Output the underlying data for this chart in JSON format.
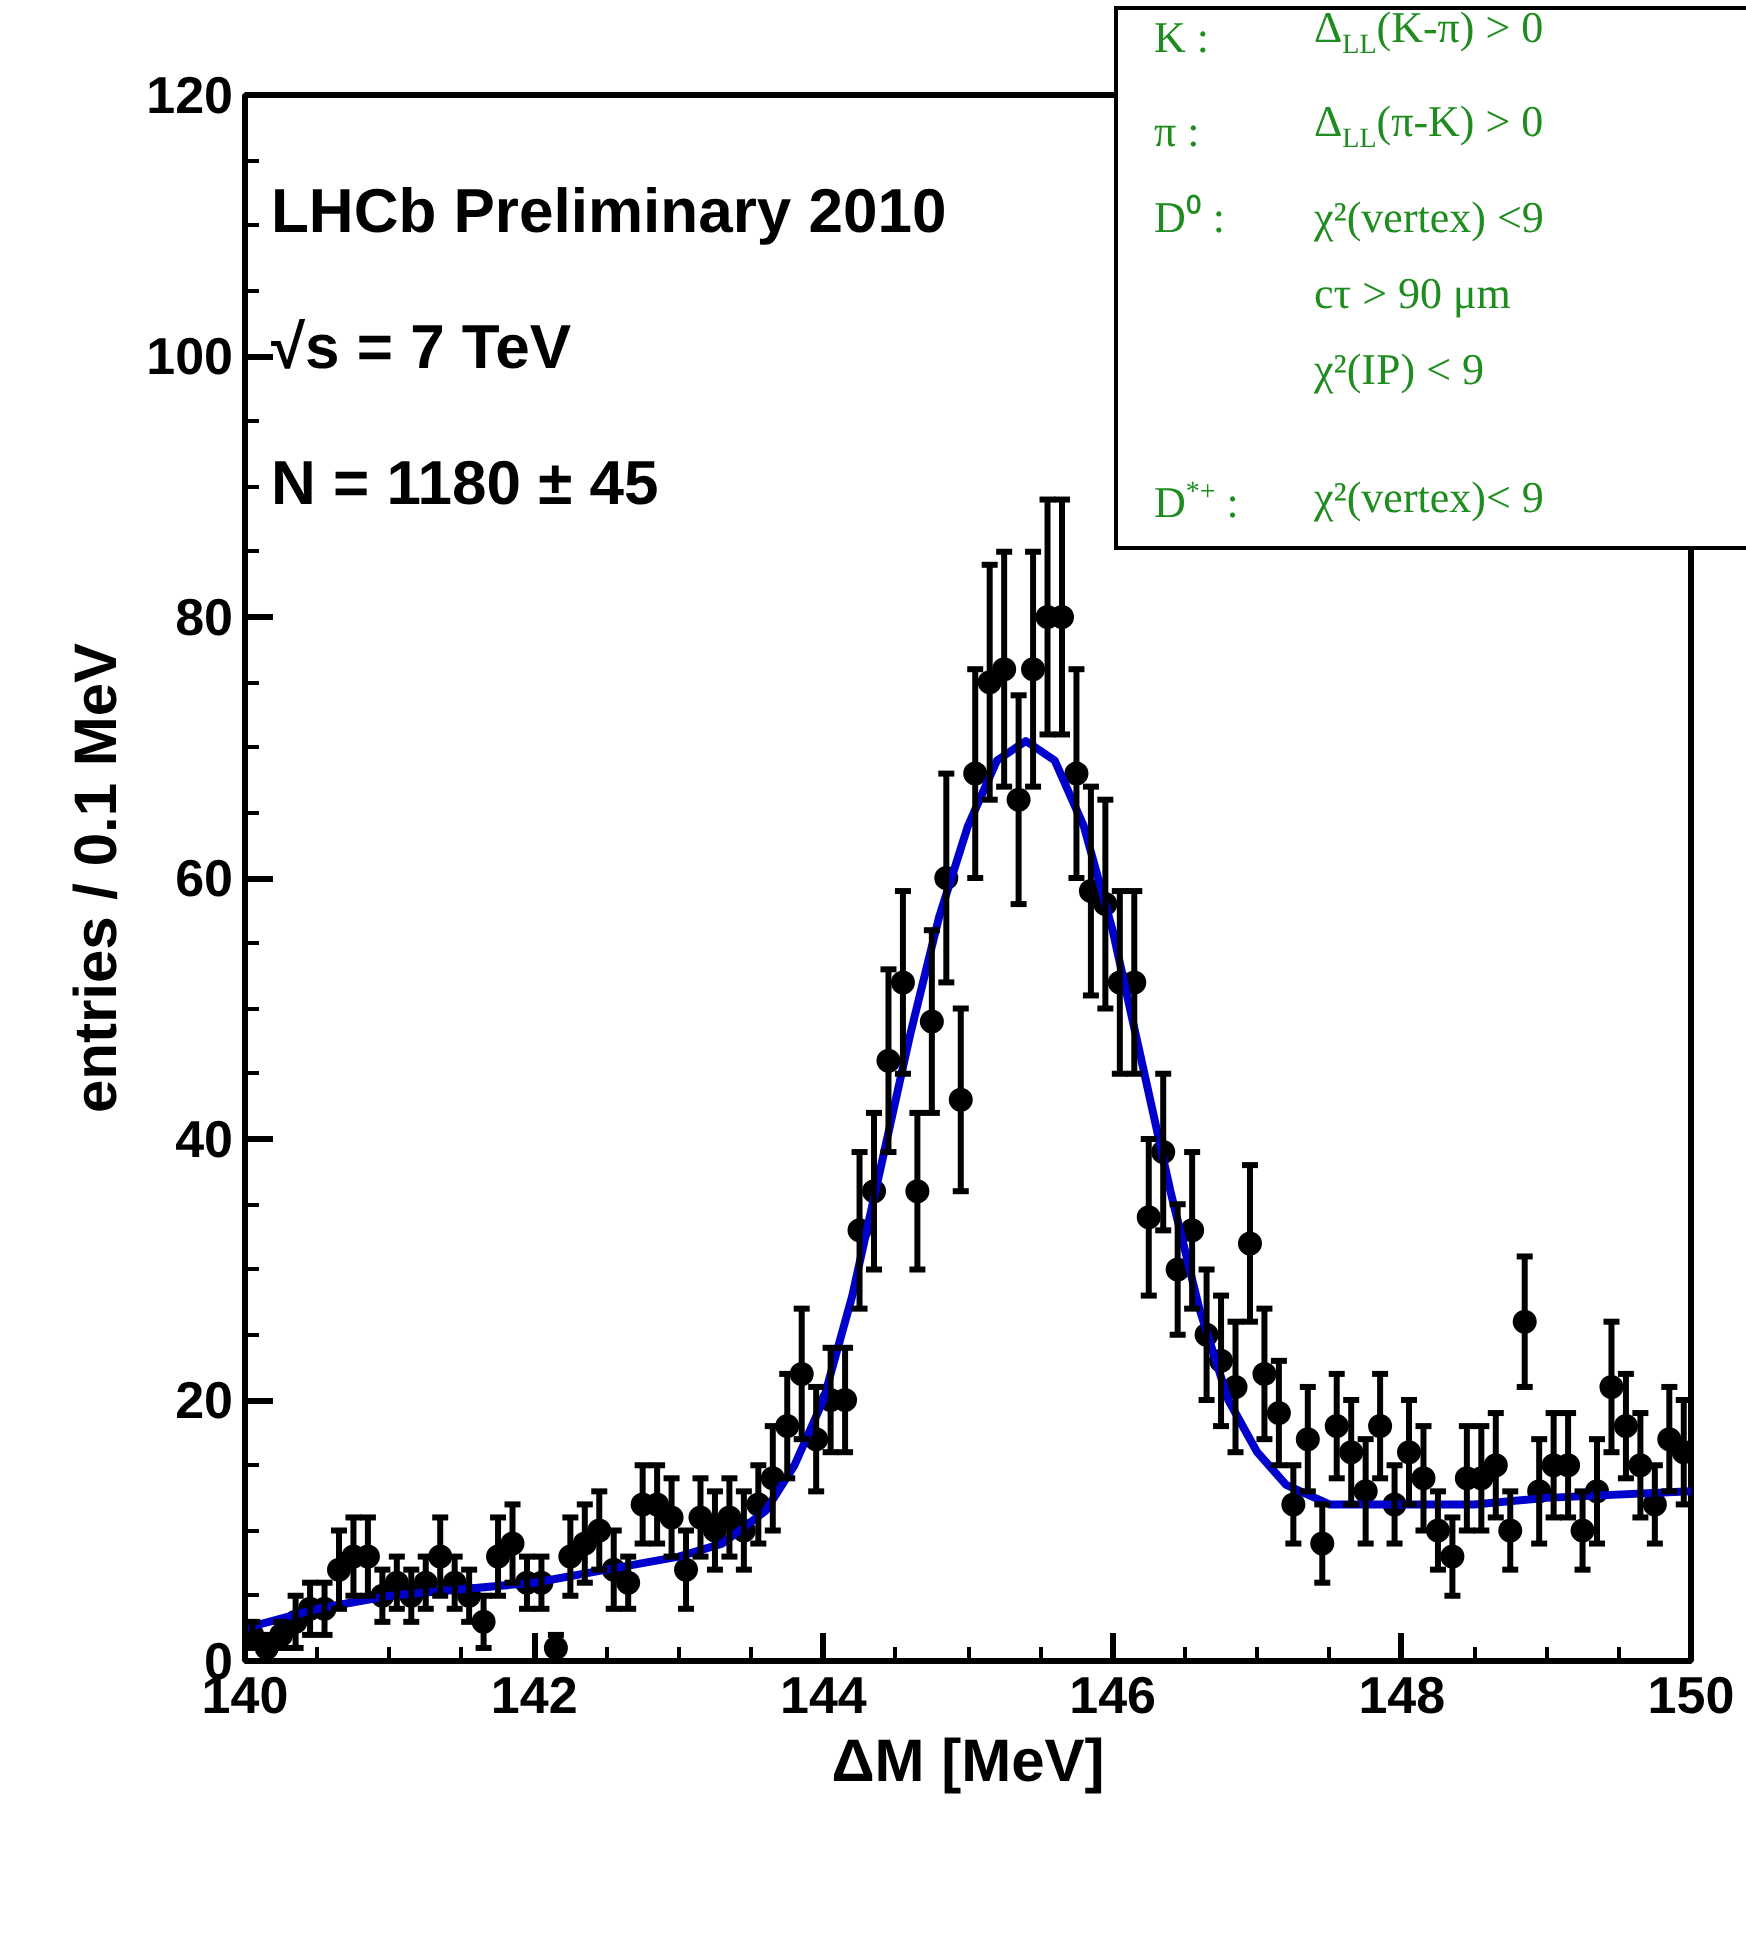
{
  "chart_data": {
    "type": "scatter",
    "xlabel": "ΔM [MeV]",
    "ylabel": "entries / 0.1 MeV",
    "xlim": [
      140,
      150
    ],
    "ylim": [
      0,
      120
    ],
    "xticks": [
      140,
      142,
      144,
      146,
      148,
      150
    ],
    "yticks": [
      0,
      20,
      40,
      60,
      80,
      100,
      120
    ],
    "annotations": [
      "LHCb Preliminary 2010",
      "√s = 7 TeV",
      "N = 1180 ± 45",
      "K :\tΔ$_{LL}$(K-π) > 0",
      "π :\tΔ$_{LL}$(π-K) > 0",
      "D⁰ :\tχ²(vertex) <9",
      "cτ > 90 μm",
      "χ²(IP) < 9",
      "D$^{*+}$ :\tχ²(vertex)< 9"
    ],
    "series": [
      {
        "marker": "circle",
        "color": "#000000",
        "x": [
          140.05,
          140.15,
          140.25,
          140.35,
          140.45,
          140.55,
          140.65,
          140.75,
          140.85,
          140.95,
          141.05,
          141.15,
          141.25,
          141.35,
          141.45,
          141.55,
          141.65,
          141.75,
          141.85,
          141.95,
          142.05,
          142.15,
          142.25,
          142.35,
          142.45,
          142.55,
          142.65,
          142.75,
          142.85,
          142.95,
          143.05,
          143.15,
          143.25,
          143.35,
          143.45,
          143.55,
          143.65,
          143.75,
          143.85,
          143.95,
          144.05,
          144.15,
          144.25,
          144.35,
          144.45,
          144.55,
          144.65,
          144.75,
          144.85,
          144.95,
          145.05,
          145.15,
          145.25,
          145.35,
          145.45,
          145.55,
          145.65,
          145.75,
          145.85,
          145.95,
          146.05,
          146.15,
          146.25,
          146.35,
          146.45,
          146.55,
          146.65,
          146.75,
          146.85,
          146.95,
          147.05,
          147.15,
          147.25,
          147.35,
          147.45,
          147.55,
          147.65,
          147.75,
          147.85,
          147.95,
          148.05,
          148.15,
          148.25,
          148.35,
          148.45,
          148.55,
          148.65,
          148.75,
          148.85,
          148.95,
          149.05,
          149.15,
          149.25,
          149.35,
          149.45,
          149.55,
          149.65,
          149.75,
          149.85,
          149.95
        ],
        "values": [
          2,
          1,
          2,
          3,
          4,
          4,
          7,
          8,
          8,
          5,
          6,
          5,
          6,
          8,
          6,
          5,
          3,
          8,
          9,
          6,
          6,
          1,
          8,
          9,
          10,
          7,
          6,
          12,
          12,
          11,
          7,
          11,
          10,
          11,
          10,
          12,
          14,
          18,
          22,
          17,
          20,
          20,
          33,
          36,
          46,
          52,
          36,
          49,
          60,
          43,
          68,
          75,
          76,
          66,
          76,
          80,
          80,
          68,
          59,
          58,
          52,
          52,
          34,
          39,
          30,
          33,
          25,
          23,
          21,
          32,
          22,
          19,
          12,
          17,
          9,
          18,
          16,
          13,
          18,
          12,
          16,
          14,
          10,
          8,
          14,
          14,
          15,
          10,
          26,
          13,
          15,
          15,
          10,
          13,
          21,
          18,
          15,
          12,
          17,
          16
        ],
        "errors": [
          1,
          1,
          1,
          2,
          2,
          2,
          3,
          3,
          3,
          2,
          2,
          2,
          2,
          3,
          2,
          2,
          2,
          3,
          3,
          2,
          2,
          1,
          3,
          3,
          3,
          3,
          2,
          3,
          3,
          3,
          3,
          3,
          3,
          3,
          3,
          3,
          4,
          4,
          5,
          4,
          4,
          4,
          6,
          6,
          7,
          7,
          6,
          7,
          8,
          7,
          8,
          9,
          9,
          8,
          9,
          9,
          9,
          8,
          8,
          8,
          7,
          7,
          6,
          6,
          5,
          6,
          5,
          5,
          5,
          6,
          5,
          4,
          3,
          4,
          3,
          4,
          4,
          4,
          4,
          3,
          4,
          4,
          3,
          3,
          4,
          4,
          4,
          3,
          5,
          4,
          4,
          4,
          3,
          4,
          5,
          4,
          4,
          3,
          4,
          4
        ]
      },
      {
        "type": "line",
        "color": "#0000cc",
        "x": [
          140,
          140.5,
          141,
          141.5,
          142,
          142.5,
          143,
          143.3,
          143.6,
          143.8,
          144,
          144.2,
          144.4,
          144.6,
          144.8,
          145,
          145.2,
          145.4,
          145.6,
          145.8,
          146,
          146.2,
          146.4,
          146.6,
          146.8,
          147,
          147.2,
          147.5,
          148,
          148.5,
          149,
          150
        ],
        "values": [
          2.5,
          4,
          5,
          5.5,
          6,
          7,
          8,
          9,
          11.5,
          15,
          20,
          28,
          38,
          48,
          57,
          64,
          69,
          70.5,
          69,
          64,
          56,
          46,
          36,
          27,
          20,
          16,
          13.5,
          12,
          12,
          12,
          12.5,
          13
        ]
      }
    ]
  }
}
